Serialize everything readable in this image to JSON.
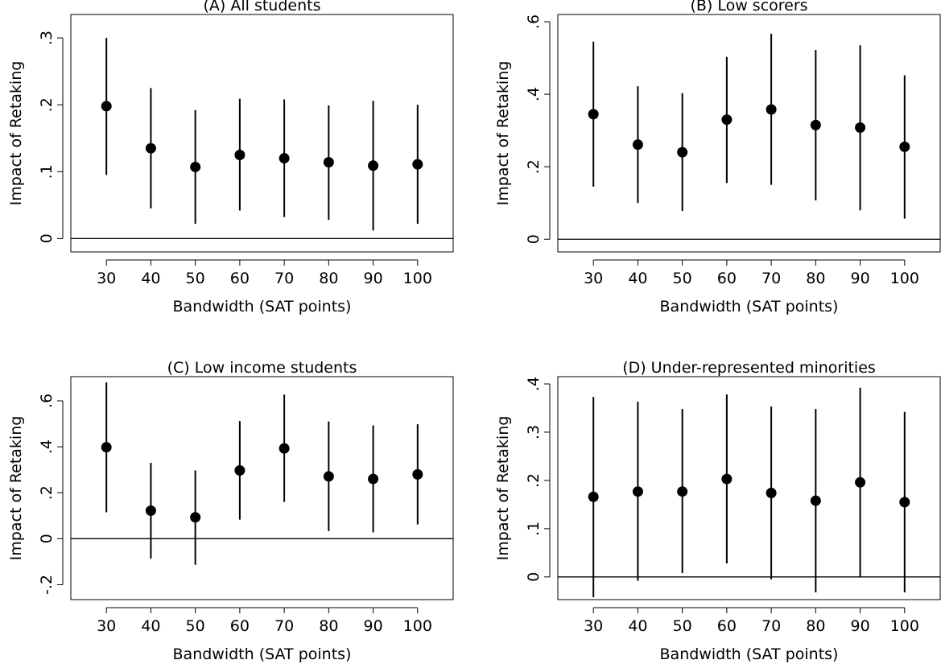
{
  "chart_data": [
    {
      "type": "scatter",
      "title": "(A) All students",
      "xlabel": "Bandwidth (SAT points)",
      "ylabel": "Impact of Retaking",
      "x": [
        30,
        40,
        50,
        60,
        70,
        80,
        90,
        100
      ],
      "x_tick_labels": [
        "30",
        "40",
        "50",
        "60",
        "70",
        "80",
        "90",
        "100"
      ],
      "y_ticks": [
        0,
        0.1,
        0.2,
        0.3
      ],
      "y_tick_labels": [
        "0",
        ".1",
        ".2",
        ".3"
      ],
      "ylim": [
        -0.02,
        0.335
      ],
      "reference_line_y": 0,
      "estimates": [
        0.198,
        0.135,
        0.107,
        0.125,
        0.12,
        0.114,
        0.109,
        0.111
      ],
      "ci_low": [
        0.095,
        0.045,
        0.022,
        0.042,
        0.032,
        0.028,
        0.012,
        0.022
      ],
      "ci_high": [
        0.3,
        0.225,
        0.192,
        0.209,
        0.208,
        0.199,
        0.206,
        0.2
      ],
      "grid": false
    },
    {
      "type": "scatter",
      "title": "(B) Low scorers",
      "xlabel": "Bandwidth (SAT points)",
      "ylabel": "Impact of Retaking",
      "x": [
        30,
        40,
        50,
        60,
        70,
        80,
        90,
        100
      ],
      "x_tick_labels": [
        "30",
        "40",
        "50",
        "60",
        "70",
        "80",
        "90",
        "100"
      ],
      "y_ticks": [
        0,
        0.2,
        0.4,
        0.6
      ],
      "y_tick_labels": [
        "0",
        ".2",
        ".4",
        ".6"
      ],
      "ylim": [
        -0.035,
        0.62
      ],
      "reference_line_y": 0,
      "estimates": [
        0.345,
        0.261,
        0.24,
        0.33,
        0.358,
        0.315,
        0.308,
        0.255
      ],
      "ci_low": [
        0.145,
        0.1,
        0.078,
        0.155,
        0.15,
        0.107,
        0.08,
        0.057
      ],
      "ci_high": [
        0.545,
        0.422,
        0.403,
        0.503,
        0.567,
        0.522,
        0.535,
        0.452
      ],
      "grid": false
    },
    {
      "type": "scatter",
      "title": "(C) Low income students",
      "xlabel": "Bandwidth (SAT points)",
      "ylabel": "Impact of Retaking",
      "x": [
        30,
        40,
        50,
        60,
        70,
        80,
        90,
        100
      ],
      "x_tick_labels": [
        "30",
        "40",
        "50",
        "60",
        "70",
        "80",
        "90",
        "100"
      ],
      "y_ticks": [
        -0.2,
        0,
        0.2,
        0.4,
        0.6
      ],
      "y_tick_labels": [
        "-.2",
        "0",
        ".2",
        ".4",
        ".6"
      ],
      "ylim": [
        -0.265,
        0.705
      ],
      "reference_line_y": 0,
      "estimates": [
        0.398,
        0.122,
        0.093,
        0.297,
        0.393,
        0.271,
        0.26,
        0.28
      ],
      "ci_low": [
        0.115,
        -0.087,
        -0.113,
        0.083,
        0.16,
        0.033,
        0.028,
        0.062
      ],
      "ci_high": [
        0.68,
        0.33,
        0.297,
        0.512,
        0.627,
        0.51,
        0.493,
        0.498
      ],
      "grid": false
    },
    {
      "type": "scatter",
      "title": "(D) Under-represented minorities",
      "xlabel": "Bandwidth (SAT points)",
      "ylabel": "Impact of Retaking",
      "x": [
        30,
        40,
        50,
        60,
        70,
        80,
        90,
        100
      ],
      "x_tick_labels": [
        "30",
        "40",
        "50",
        "60",
        "70",
        "80",
        "90",
        "100"
      ],
      "y_ticks": [
        0,
        0.1,
        0.2,
        0.3,
        0.4
      ],
      "y_tick_labels": [
        "0",
        ".1",
        ".2",
        ".3",
        ".4"
      ],
      "ylim": [
        -0.047,
        0.415
      ],
      "reference_line_y": 0,
      "estimates": [
        0.166,
        0.177,
        0.177,
        0.203,
        0.174,
        0.158,
        0.196,
        0.155
      ],
      "ci_low": [
        -0.042,
        -0.008,
        0.008,
        0.028,
        -0.005,
        -0.032,
        0.0,
        -0.032
      ],
      "ci_high": [
        0.373,
        0.363,
        0.348,
        0.378,
        0.353,
        0.348,
        0.392,
        0.342
      ],
      "grid": false
    }
  ]
}
